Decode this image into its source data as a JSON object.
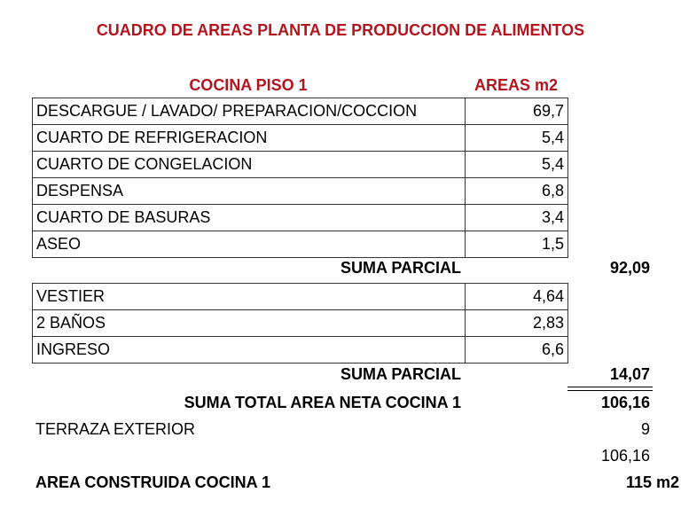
{
  "title": "CUADRO DE AREAS PLANTA DE PRODUCCION DE ALIMENTOS",
  "header": {
    "section": "COCINA PISO 1",
    "areas": "AREAS m2"
  },
  "group1": [
    {
      "name": "DESCARGUE / LAVADO/ PREPARACION/COCCION",
      "area": "69,7"
    },
    {
      "name": "CUARTO DE REFRIGERACION",
      "area": "5,4"
    },
    {
      "name": "CUARTO DE CONGELACION",
      "area": "5,4"
    },
    {
      "name": "DESPENSA",
      "area": "6,8"
    },
    {
      "name": "CUARTO DE BASURAS",
      "area": "3,4"
    },
    {
      "name": "ASEO",
      "area": "1,5"
    }
  ],
  "subtotal1": {
    "label": "SUMA PARCIAL",
    "value": "92,09"
  },
  "group2": [
    {
      "name": "VESTIER",
      "area": "4,64"
    },
    {
      "name": "2 BAÑOS",
      "area": "2,83"
    },
    {
      "name": "INGRESO",
      "area": "6,6"
    }
  ],
  "subtotal2": {
    "label": "SUMA PARCIAL",
    "value": "14,07"
  },
  "total": {
    "label": "SUMA TOTAL AREA NETA COCINA 1",
    "value": "106,16"
  },
  "terraza": {
    "label": "TERRAZA EXTERIOR",
    "value": "9"
  },
  "extra_value": "106,16",
  "construida": {
    "label": "AREA CONSTRUIDA COCINA 1",
    "value": "115 m2"
  },
  "colors": {
    "heading": "#b3141e",
    "text": "#000000",
    "border": "#333333"
  }
}
